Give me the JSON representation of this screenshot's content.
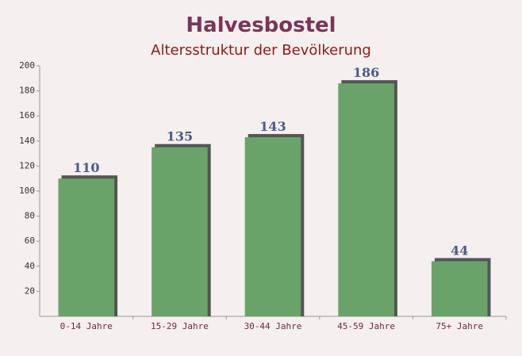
{
  "chart_data": {
    "type": "bar",
    "title": "Halvesbostel",
    "subtitle": "Altersstruktur der Bevölkerung",
    "categories": [
      "0-14 Jahre",
      "15-29 Jahre",
      "30-44 Jahre",
      "45-59 Jahre",
      "75+ Jahre"
    ],
    "values": [
      110,
      135,
      143,
      186,
      44
    ],
    "color": "#6aa36a",
    "ylim": [
      0,
      200
    ],
    "yticks": [
      20,
      40,
      60,
      80,
      100,
      120,
      140,
      160,
      180,
      200
    ]
  }
}
